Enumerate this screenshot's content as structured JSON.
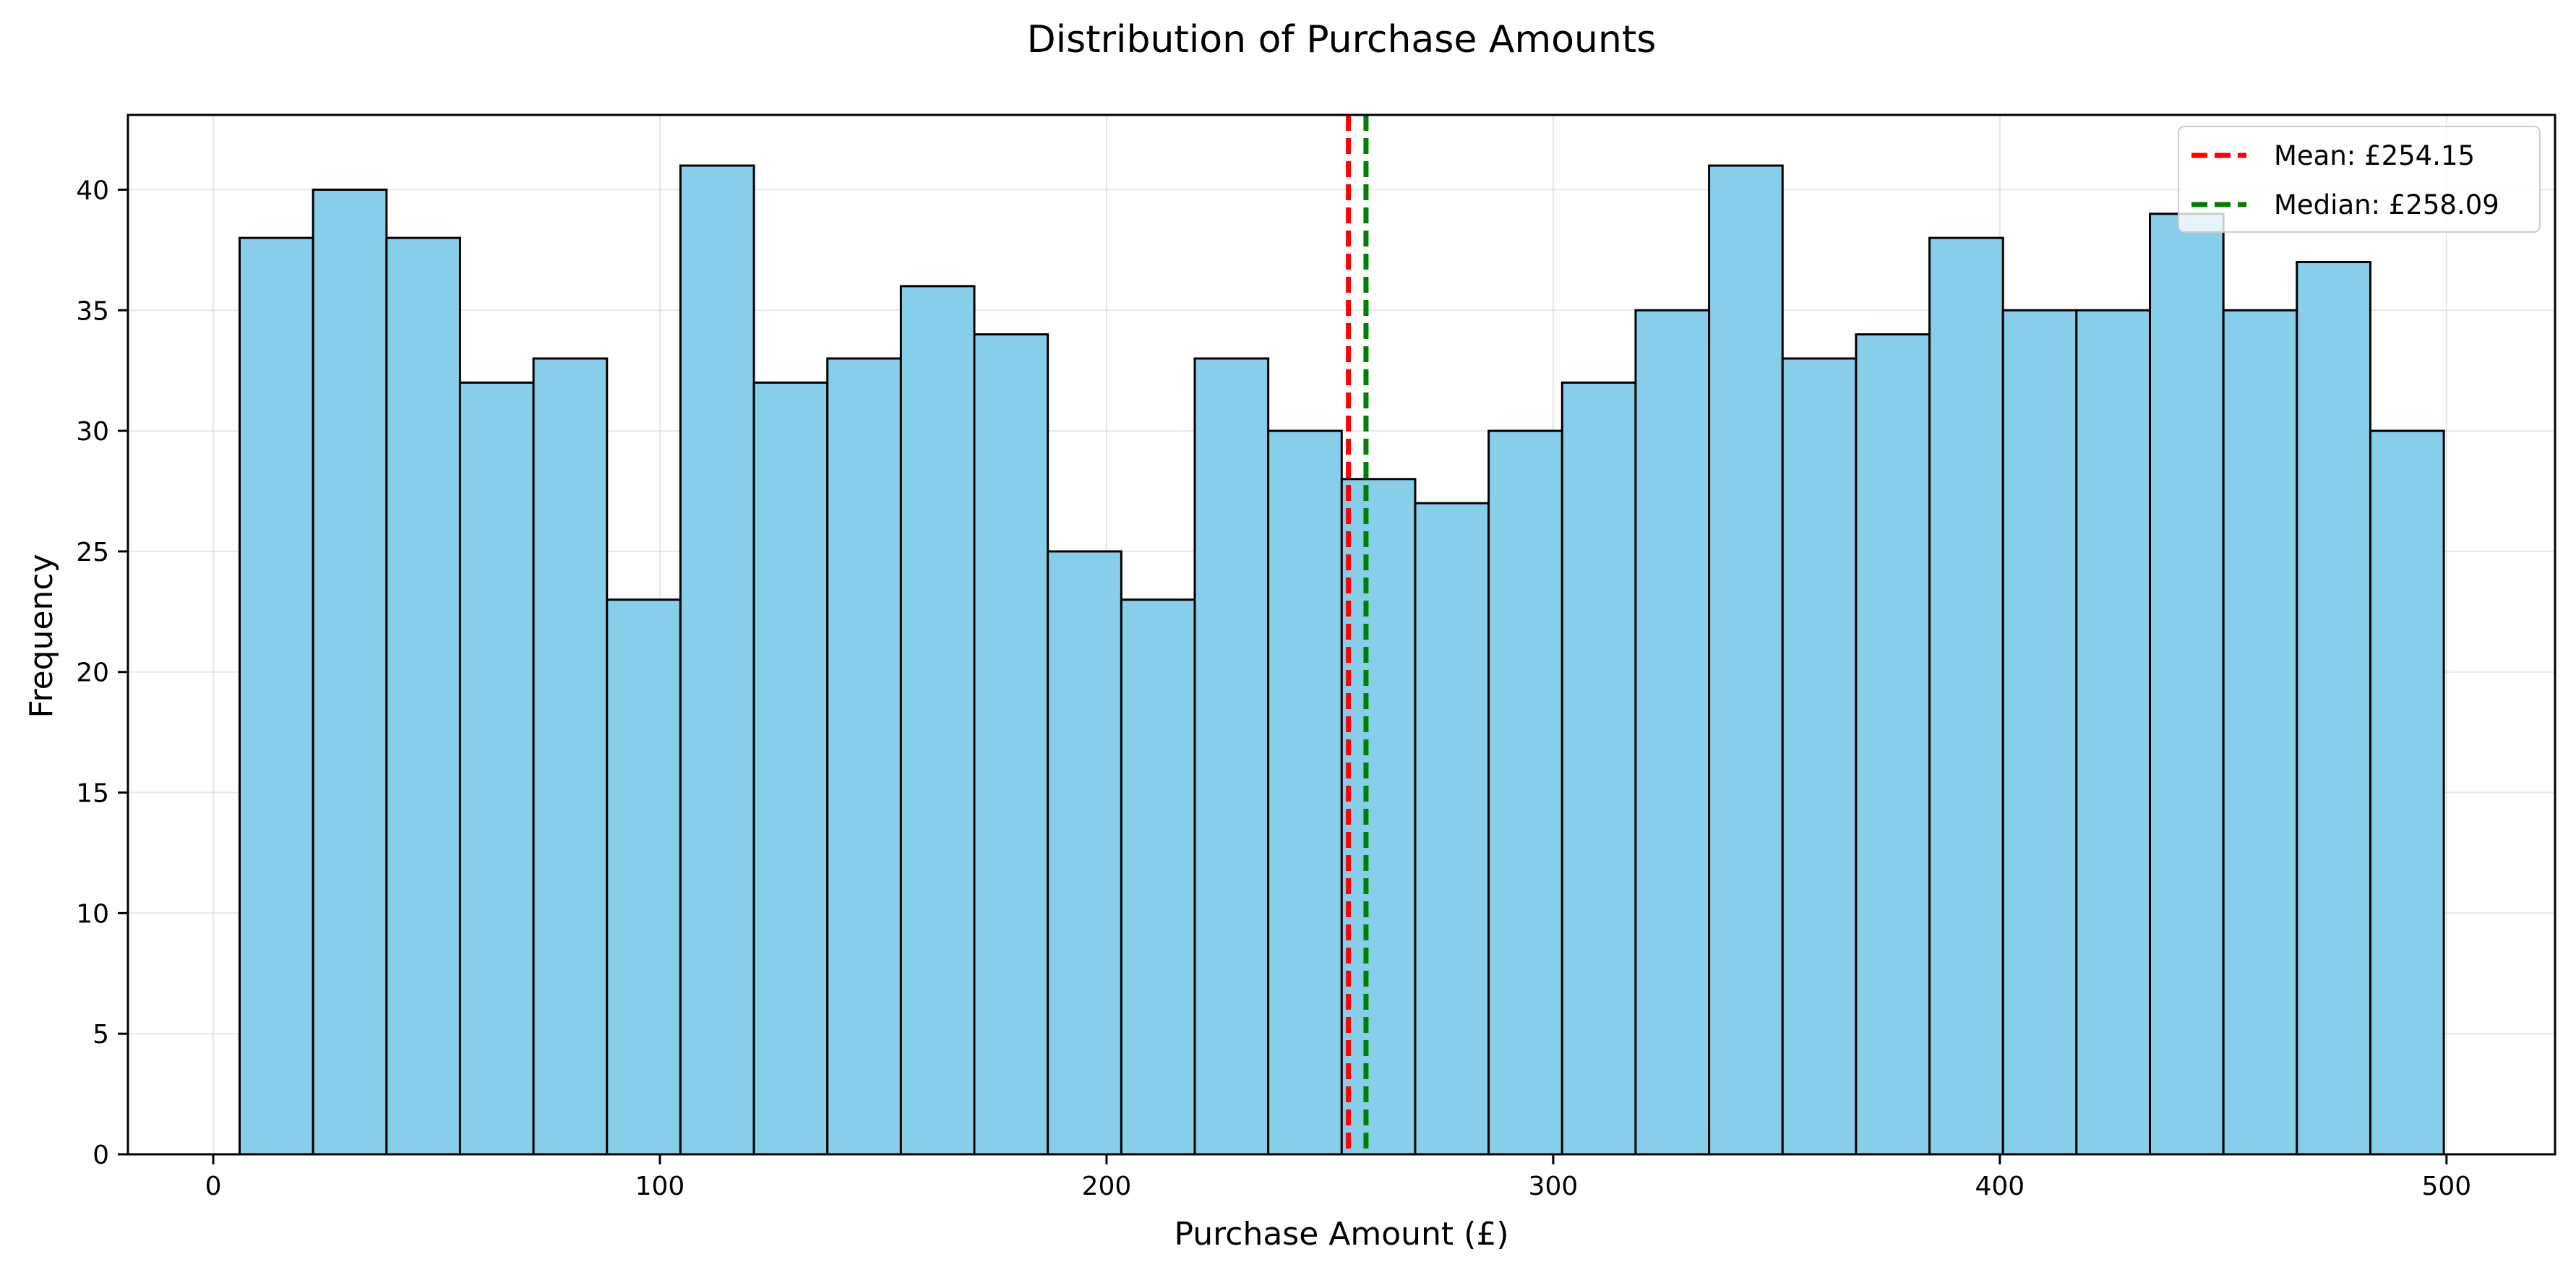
{
  "chart_data": {
    "type": "bar",
    "title": "Distribution of Purchase Amounts",
    "xlabel": "Purchase Amount (£)",
    "ylabel": "Frequency",
    "bin_start": 5.9,
    "bin_width": 16.45,
    "values": [
      38,
      40,
      38,
      32,
      33,
      23,
      41,
      32,
      33,
      36,
      34,
      25,
      23,
      33,
      30,
      28,
      27,
      30,
      32,
      35,
      41,
      33,
      34,
      38,
      35,
      35,
      39,
      35,
      37,
      30
    ],
    "xlim": [
      -19.1,
      524.3
    ],
    "ylim": [
      0,
      43.1
    ],
    "xticks": [
      0,
      100,
      200,
      300,
      400,
      500
    ],
    "yticks": [
      0,
      5,
      10,
      15,
      20,
      25,
      30,
      35,
      40
    ],
    "grid": true,
    "bar_color": "#87CEEB",
    "edge_color": "#000000",
    "reference_lines": [
      {
        "label": "Mean: £254.15",
        "value": 254.15,
        "color": "#ff0000",
        "style": "dashed"
      },
      {
        "label": "Median: £258.09",
        "value": 258.09,
        "color": "#008000",
        "style": "dashed"
      }
    ],
    "legend_position": "top-right"
  }
}
